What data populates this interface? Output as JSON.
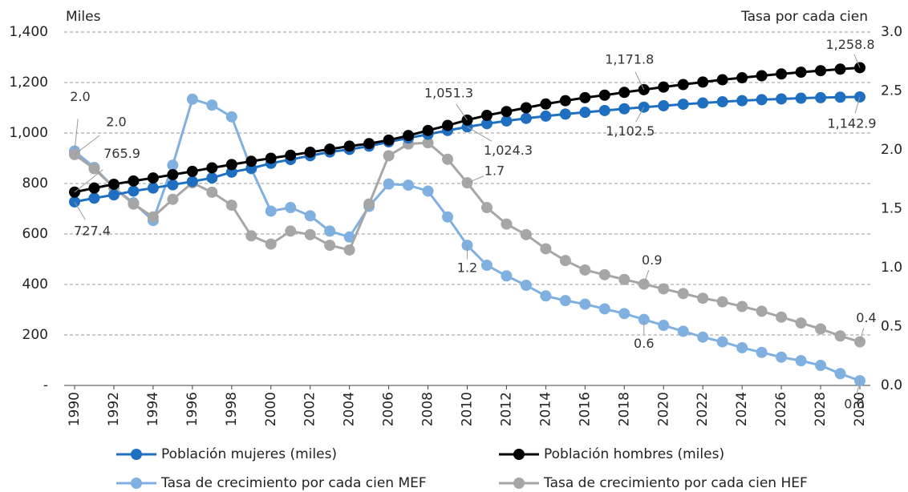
{
  "chart_data": {
    "type": "line",
    "ylabel": "Miles",
    "y2label": "Tasa por cada cien",
    "x": [
      1990,
      1991,
      1992,
      1993,
      1994,
      1995,
      1996,
      1997,
      1998,
      1999,
      2000,
      2001,
      2002,
      2003,
      2004,
      2005,
      2006,
      2007,
      2008,
      2009,
      2010,
      2011,
      2012,
      2013,
      2014,
      2015,
      2016,
      2017,
      2018,
      2019,
      2020,
      2021,
      2022,
      2023,
      2024,
      2025,
      2026,
      2027,
      2028,
      2029,
      2030
    ],
    "xlim": [
      1990,
      2030
    ],
    "xticks": [
      1990,
      1992,
      1994,
      1996,
      1998,
      2000,
      2002,
      2004,
      2006,
      2008,
      2010,
      2012,
      2014,
      2016,
      2018,
      2020,
      2022,
      2024,
      2026,
      2028,
      2030
    ],
    "ylim": [
      0,
      1400
    ],
    "yticks": [
      {
        "value": 0,
        "label": "-"
      },
      200,
      400,
      600,
      800,
      {
        "value": 1000,
        "label": "1,000"
      },
      {
        "value": 1200,
        "label": "1,200"
      },
      {
        "value": 1400,
        "label": "1,400"
      }
    ],
    "y2lim": [
      0,
      3
    ],
    "y2ticks": [
      {
        "value": 0,
        "label": "0.0"
      },
      0.5,
      {
        "value": 1,
        "label": "1.0"
      },
      1.5,
      {
        "value": 2,
        "label": "2.0"
      },
      2.5,
      {
        "value": 3,
        "label": "3.0"
      }
    ],
    "grid": true,
    "series": [
      {
        "name": "Población mujeres (miles)",
        "color": "#1f6fc1",
        "values": [
          727.4,
          742,
          755,
          770,
          782,
          795,
          808,
          822,
          845,
          860,
          880,
          895,
          910,
          925,
          935,
          948,
          965,
          980,
          995,
          1010,
          1024.3,
          1037,
          1048,
          1058,
          1067,
          1075,
          1082,
          1089,
          1096,
          1102.5,
          1108,
          1114,
          1119,
          1124,
          1128,
          1132,
          1135,
          1138,
          1140,
          1142,
          1142.9
        ],
        "value_labels": [
          "727.4",
          null,
          null,
          null,
          null,
          null,
          null,
          null,
          null,
          null,
          null,
          null,
          null,
          null,
          null,
          null,
          null,
          null,
          null,
          null,
          "1,024.3",
          null,
          null,
          null,
          null,
          null,
          null,
          null,
          null,
          "1,102.5",
          null,
          null,
          null,
          null,
          null,
          null,
          null,
          null,
          null,
          null,
          "1,142.9"
        ]
      },
      {
        "name": "Población hombres (miles)",
        "color": "#000000",
        "values": [
          765.9,
          782,
          797,
          810,
          822,
          835,
          848,
          862,
          875,
          888,
          900,
          912,
          924,
          936,
          948,
          958,
          972,
          990,
          1010,
          1030,
          1051.3,
          1070,
          1085,
          1100,
          1115,
          1128,
          1140,
          1150,
          1161,
          1171.8,
          1182,
          1192,
          1202,
          1211,
          1219,
          1227,
          1234,
          1241,
          1247,
          1253,
          1258.8
        ],
        "value_labels": [
          "765.9",
          null,
          null,
          null,
          null,
          null,
          null,
          null,
          null,
          null,
          null,
          null,
          null,
          null,
          null,
          null,
          null,
          null,
          null,
          null,
          "1,051.3",
          null,
          null,
          null,
          null,
          null,
          null,
          null,
          null,
          "1,171.8",
          null,
          null,
          null,
          null,
          null,
          null,
          null,
          null,
          null,
          null,
          "1,258.8"
        ]
      },
      {
        "name": "Tasa de crecimiento por cada cien MEF",
        "color": "#7fb0e0",
        "axis": "y2",
        "values": [
          1.99,
          1.85,
          1.68,
          1.55,
          1.4,
          1.87,
          2.43,
          2.38,
          2.28,
          1.84,
          1.48,
          1.51,
          1.44,
          1.31,
          1.26,
          1.52,
          1.71,
          1.7,
          1.65,
          1.43,
          1.19,
          1.02,
          0.93,
          0.85,
          0.76,
          0.72,
          0.69,
          0.65,
          0.61,
          0.56,
          0.51,
          0.46,
          0.41,
          0.37,
          0.32,
          0.28,
          0.24,
          0.21,
          0.17,
          0.1,
          0.04
        ],
        "value_labels": [
          "2.0",
          null,
          null,
          null,
          null,
          null,
          null,
          null,
          null,
          null,
          null,
          null,
          null,
          null,
          null,
          null,
          null,
          null,
          null,
          null,
          "1.2",
          null,
          null,
          null,
          null,
          null,
          null,
          null,
          null,
          "0.6",
          null,
          null,
          null,
          null,
          null,
          null,
          null,
          null,
          null,
          null,
          "0.0"
        ]
      },
      {
        "name": "Tasa de crecimiento por cada cien HEF",
        "color": "#a6a6a6",
        "axis": "y2",
        "values": [
          1.96,
          1.84,
          1.68,
          1.54,
          1.43,
          1.58,
          1.72,
          1.64,
          1.53,
          1.27,
          1.2,
          1.31,
          1.28,
          1.19,
          1.15,
          1.54,
          1.95,
          2.05,
          2.06,
          1.92,
          1.72,
          1.51,
          1.37,
          1.28,
          1.16,
          1.06,
          0.98,
          0.94,
          0.9,
          0.86,
          0.82,
          0.78,
          0.74,
          0.71,
          0.67,
          0.63,
          0.58,
          0.53,
          0.48,
          0.42,
          0.37
        ],
        "value_labels": [
          "2.0",
          null,
          null,
          null,
          null,
          null,
          null,
          null,
          null,
          null,
          null,
          null,
          null,
          null,
          null,
          null,
          null,
          null,
          null,
          null,
          "1.7",
          null,
          null,
          null,
          null,
          null,
          null,
          null,
          null,
          "0.9",
          null,
          null,
          null,
          null,
          null,
          null,
          null,
          null,
          null,
          null,
          "0.4"
        ]
      }
    ]
  }
}
